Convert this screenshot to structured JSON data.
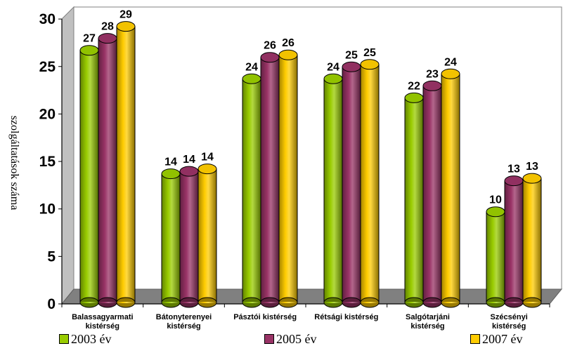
{
  "chart_data": {
    "type": "bar",
    "title": "",
    "xlabel": "",
    "ylabel": "szolgáltatások száma",
    "ylim": [
      0,
      30
    ],
    "yticks": [
      "0",
      "5",
      "10",
      "15",
      "20",
      "25",
      "30"
    ],
    "categories": [
      [
        "Balassagyarmati",
        "kistérség"
      ],
      [
        "Bátonyterenyei",
        "kistérség"
      ],
      [
        "Pásztói kistérség"
      ],
      [
        "Rétsági kistérség"
      ],
      [
        "Salgótarjáni",
        "kistérség"
      ],
      [
        "Szécsényi",
        "kistérség"
      ]
    ],
    "series": [
      {
        "name": "2003 év",
        "color": "#99CC00",
        "values": [
          27,
          14,
          24,
          24,
          22,
          10
        ]
      },
      {
        "name": "2005 év",
        "color": "#993366",
        "values": [
          28,
          14,
          26,
          25,
          23,
          13
        ]
      },
      {
        "name": "2007 év",
        "color": "#FFCC00",
        "values": [
          29,
          14,
          26,
          25,
          24,
          13
        ]
      }
    ],
    "legend_position": "bottom",
    "grid": false,
    "style": "3d-cylinder"
  }
}
